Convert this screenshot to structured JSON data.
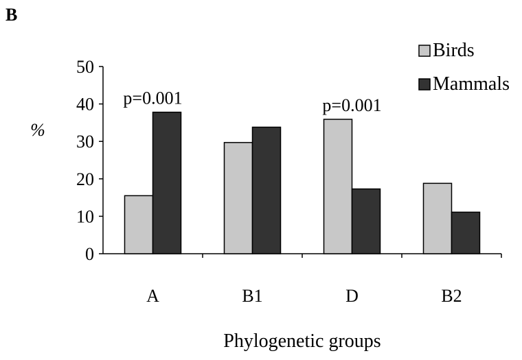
{
  "chart_data": {
    "type": "bar",
    "panel_label": "B",
    "categories": [
      "A",
      "B1",
      "D",
      "B2"
    ],
    "series": [
      {
        "name": "Birds",
        "values": [
          15.5,
          29.7,
          35.9,
          18.8
        ],
        "color": "#c8c8c8"
      },
      {
        "name": "Mammals",
        "values": [
          37.8,
          33.8,
          17.3,
          11.1
        ],
        "color": "#333333"
      }
    ],
    "ylabel": "%",
    "xlabel": "Phylogenetic groups",
    "ylim": [
      0,
      50
    ],
    "yticks": [
      "0",
      "10",
      "20",
      "30",
      "40",
      "50"
    ],
    "grid": false,
    "legend_position": "top-right",
    "annotations": [
      {
        "text": "p=0.001",
        "category": "A"
      },
      {
        "text": "p=0.001",
        "category": "D"
      }
    ]
  }
}
